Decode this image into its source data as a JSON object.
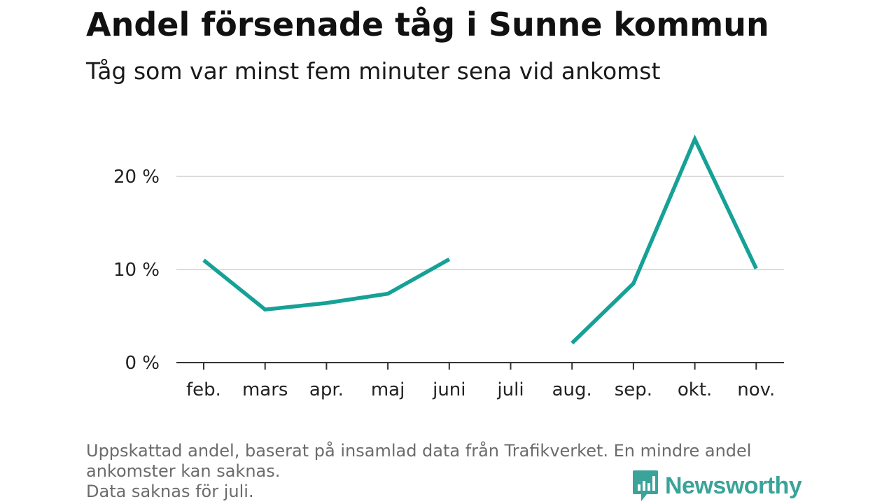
{
  "title": "Andel försenade tåg i Sunne kommun",
  "subtitle": "Tåg som var minst fem minuter sena vid ankomst",
  "footer": {
    "note_line1": "Uppskattad andel, baserat på insamlad data från Trafikverket. En mindre andel ankomster kan saknas.",
    "note_line2": "Data saknas för juli."
  },
  "brand": {
    "name": "Newsworthy",
    "color": "#3aa39a"
  },
  "chart_data": {
    "type": "line",
    "title": "Andel försenade tåg i Sunne kommun",
    "subtitle": "Tåg som var minst fem minuter sena vid ankomst",
    "xlabel": "",
    "ylabel": "",
    "categories": [
      "feb.",
      "mars",
      "apr.",
      "maj",
      "juni",
      "juli",
      "aug.",
      "sep.",
      "okt.",
      "nov."
    ],
    "series": [
      {
        "name": "Andel försenade tåg",
        "color": "#16a196",
        "values": [
          11.0,
          5.7,
          6.4,
          7.4,
          11.1,
          null,
          2.1,
          8.5,
          24.0,
          10.1
        ]
      }
    ],
    "ylim": [
      0,
      25
    ],
    "yticks": [
      0,
      10,
      20
    ],
    "ytick_labels": [
      "0 %",
      "10 %",
      "20 %"
    ],
    "grid": true,
    "legend": "none"
  }
}
